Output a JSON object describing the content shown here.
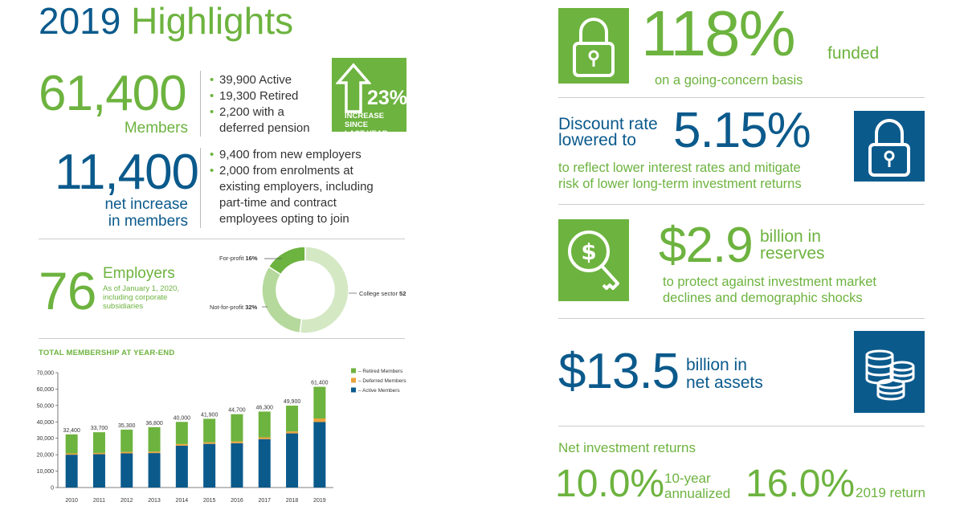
{
  "header": {
    "title_year": "2019",
    "title_word": "Highlights"
  },
  "members": {
    "value": "61,400",
    "label": "Members",
    "bullets": [
      "39,900 Active",
      "19,300 Retired",
      "2,200 with a",
      "deferred pension"
    ],
    "increase": {
      "pct": "23%",
      "text_line1": "INCREASE SINCE",
      "text_line2": "LAST YEAR"
    }
  },
  "net_increase": {
    "value": "11,400",
    "label_line1": "net increase",
    "label_line2": "in members",
    "bullets": [
      "9,400 from new employers",
      "2,000 from enrolments at",
      "existing employers, including",
      "part-time and contract",
      "employees opting to join"
    ]
  },
  "employers": {
    "value": "76",
    "label": "Employers",
    "note_line1": "As of January 1, 2020,",
    "note_line2": "including corporate",
    "note_line3": "subsidiaries"
  },
  "funded": {
    "value": "118%",
    "unit": "funded",
    "desc": "on a going-concern basis"
  },
  "discount": {
    "label_line1": "Discount rate",
    "label_line2": "lowered to",
    "value": "5.15%",
    "desc_line1": "to reflect lower interest rates and mitigate",
    "desc_line2": "risk of lower long-term investment returns"
  },
  "reserves": {
    "value": "$2.9",
    "unit_line1": "billion in",
    "unit_line2": "reserves",
    "desc_line1": "to protect against investment market",
    "desc_line2": "declines and demographic shocks"
  },
  "net_assets": {
    "value": "$13.5",
    "unit_line1": "billion in",
    "unit_line2": "net assets"
  },
  "returns": {
    "title": "Net investment returns",
    "ten_year_value": "10.0%",
    "ten_year_label_line1": "10-year",
    "ten_year_label_line2": "annualized",
    "year_value": "16.0%",
    "year_label": "2019 return"
  },
  "icons": {
    "funded": "lock-icon",
    "discount": "lock-icon",
    "reserves": "dollar-key-icon",
    "net_assets": "coin-stack-icon"
  },
  "colors": {
    "green": "#6db33f",
    "blue": "#0b5a8c",
    "orange": "#e8a33d",
    "light_green": "#b5d99c"
  },
  "chart_data": [
    {
      "type": "pie",
      "style": "donut",
      "slices": [
        {
          "label": "For-profit",
          "value": 16,
          "display": "16%"
        },
        {
          "label": "College sector",
          "value": 52,
          "display": "52%"
        },
        {
          "label": "Not-for-profit",
          "value": 32,
          "display": "32%"
        }
      ]
    },
    {
      "type": "bar",
      "stacked": true,
      "title": "TOTAL MEMBERSHIP AT YEAR-END",
      "categories": [
        "2010",
        "2011",
        "2012",
        "2013",
        "2014",
        "2015",
        "2016",
        "2017",
        "2018",
        "2019"
      ],
      "totals": [
        "32,400",
        "33,700",
        "35,300",
        "36,800",
        "40,000",
        "41,900",
        "44,700",
        "46,300",
        "49,900",
        "61,400"
      ],
      "series": [
        {
          "name": "Active Members",
          "values": [
            20000,
            20300,
            20800,
            21000,
            25500,
            26600,
            27000,
            29500,
            33000,
            39900
          ]
        },
        {
          "name": "Deferred Members",
          "values": [
            800,
            800,
            900,
            900,
            1000,
            1000,
            1100,
            1100,
            1200,
            2200
          ]
        },
        {
          "name": "Retired Members",
          "values": [
            11600,
            12600,
            13600,
            14900,
            13500,
            14300,
            16600,
            15700,
            15700,
            19300
          ]
        }
      ],
      "legend": [
        "Retired Members",
        "Deferred Members",
        "Active Members"
      ],
      "legend_position": "top-right",
      "ylim": [
        0,
        70000
      ],
      "yticks": [
        "0",
        "10,000",
        "20,000",
        "30,000",
        "40,000",
        "50,000",
        "60,000",
        "70,000"
      ]
    }
  ]
}
